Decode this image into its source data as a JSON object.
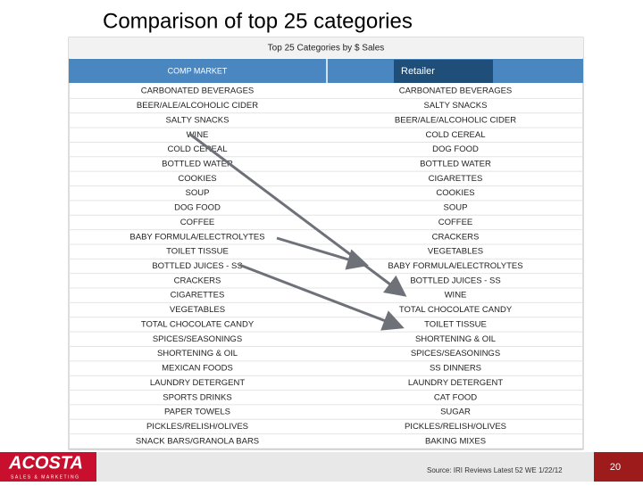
{
  "title": "Comparison of  top 25 categories",
  "table": {
    "title": "Top 25 Categories by $ Sales",
    "columns": [
      "COMP MARKET",
      "Retailer"
    ],
    "rows": [
      [
        "CARBONATED BEVERAGES",
        "CARBONATED BEVERAGES"
      ],
      [
        "BEER/ALE/ALCOHOLIC CIDER",
        "SALTY SNACKS"
      ],
      [
        "SALTY SNACKS",
        "BEER/ALE/ALCOHOLIC CIDER"
      ],
      [
        "WINE",
        "COLD CEREAL"
      ],
      [
        "COLD CEREAL",
        "DOG FOOD"
      ],
      [
        "BOTTLED WATER",
        "BOTTLED WATER"
      ],
      [
        "COOKIES",
        "CIGARETTES"
      ],
      [
        "SOUP",
        "COOKIES"
      ],
      [
        "DOG FOOD",
        "SOUP"
      ],
      [
        "COFFEE",
        "COFFEE"
      ],
      [
        "BABY FORMULA/ELECTROLYTES",
        "CRACKERS"
      ],
      [
        "TOILET TISSUE",
        "VEGETABLES"
      ],
      [
        "BOTTLED JUICES - SS",
        "BABY FORMULA/ELECTROLYTES"
      ],
      [
        "CRACKERS",
        "BOTTLED JUICES - SS"
      ],
      [
        "CIGARETTES",
        "WINE"
      ],
      [
        "VEGETABLES",
        "TOTAL CHOCOLATE CANDY"
      ],
      [
        "TOTAL CHOCOLATE CANDY",
        "TOILET TISSUE"
      ],
      [
        "SPICES/SEASONINGS",
        "SHORTENING & OIL"
      ],
      [
        "SHORTENING & OIL",
        "SPICES/SEASONINGS"
      ],
      [
        "MEXICAN FOODS",
        "SS DINNERS"
      ],
      [
        "LAUNDRY DETERGENT",
        "LAUNDRY DETERGENT"
      ],
      [
        "SPORTS DRINKS",
        "CAT FOOD"
      ],
      [
        "PAPER TOWELS",
        "SUGAR"
      ],
      [
        "PICKLES/RELISH/OLIVES",
        "PICKLES/RELISH/OLIVES"
      ],
      [
        "SNACK BARS/GRANOLA BARS",
        "BAKING MIXES"
      ]
    ]
  },
  "footer": {
    "logo": "ACOSTA",
    "logo_sub": "SALES & MARKETING",
    "source": "Source: IRI Reviews Latest 52 WE 1/22/12",
    "page": "20"
  }
}
